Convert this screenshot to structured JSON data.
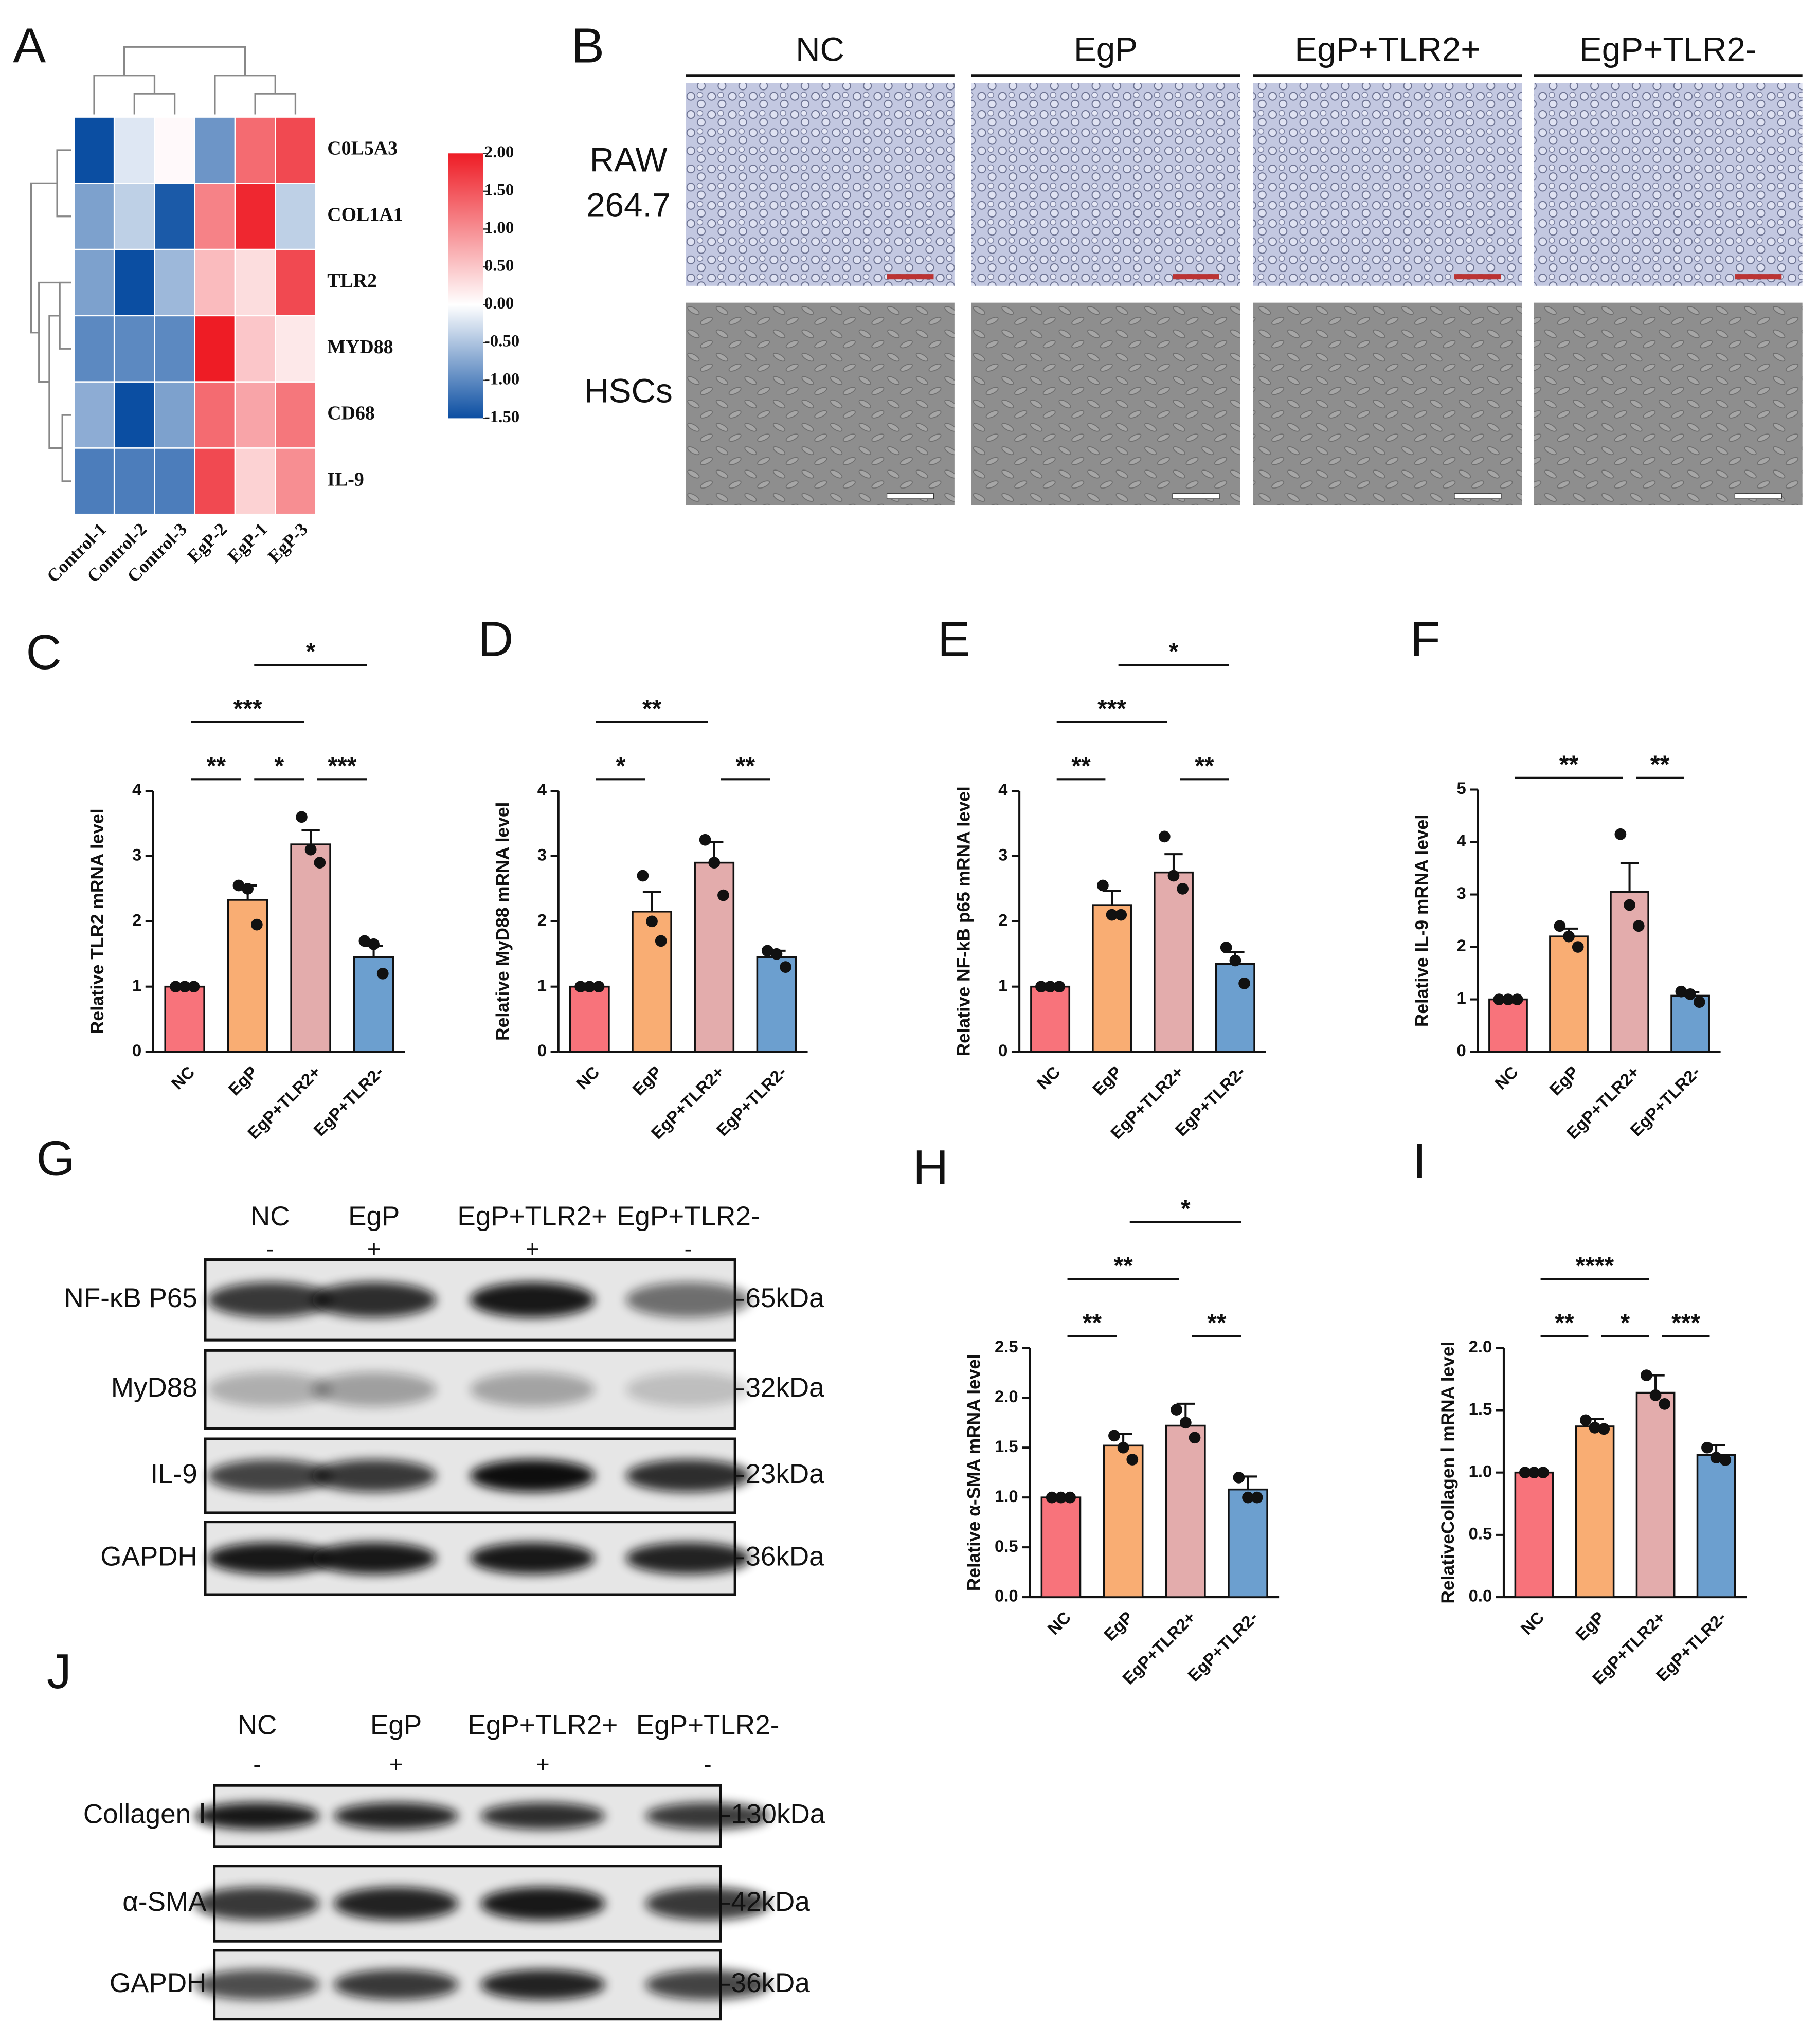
{
  "panel_labels": [
    "A",
    "B",
    "C",
    "D",
    "E",
    "F",
    "G",
    "H",
    "I",
    "J"
  ],
  "chart_data": [
    {
      "type": "heatmap",
      "rows": [
        "C0L5A3",
        "COL1A1",
        "TLR2",
        "MYD88",
        "CD68",
        "IL-9"
      ],
      "columns": [
        "Control-1",
        "Control-2",
        "Control-3",
        "EgP-2",
        "EgP-1",
        "EgP-3"
      ],
      "values": [
        [
          -1.5,
          -0.2,
          0.05,
          -0.9,
          1.3,
          1.6
        ],
        [
          -0.8,
          -0.4,
          -1.4,
          1.1,
          1.9,
          -0.4
        ],
        [
          -0.8,
          -1.5,
          -0.6,
          0.6,
          0.3,
          1.6
        ],
        [
          -1.0,
          -1.0,
          -1.0,
          2.0,
          0.5,
          0.2
        ],
        [
          -0.7,
          -1.5,
          -0.8,
          1.3,
          0.8,
          1.2
        ],
        [
          -1.1,
          -1.1,
          -1.1,
          1.6,
          0.4,
          1.0
        ]
      ],
      "clim": [
        -1.5,
        2
      ],
      "colors": [
        "#0b4ea2",
        "#ffffff",
        "#ee1c25"
      ],
      "colorbar_ticks": [
        {
          "value": 2,
          "label": "2.00"
        },
        {
          "value": 1.5,
          "label": "1.50"
        },
        {
          "value": 1,
          "label": "1.00"
        },
        {
          "value": 0.5,
          "label": "0.50"
        },
        {
          "value": 0,
          "label": "0.00"
        },
        {
          "value": -0.5,
          "label": "-0.50"
        },
        {
          "value": -1,
          "label": "-1.00"
        },
        {
          "value": -1.5,
          "label": "-1.50"
        }
      ]
    },
    {
      "type": "bar",
      "ylabel": "Relative TLR2 mRNA level",
      "categories": [
        "NC",
        "EgP",
        "EgP+TLR2+",
        "EgP+TLR2-"
      ],
      "colors": [
        "#f8737b",
        "#f9ad73",
        "#e3acac",
        "#6c9fcf"
      ],
      "values": [
        1,
        2.33,
        3.18,
        1.45
      ],
      "errors": [
        0,
        0.22,
        0.22,
        0.17
      ],
      "points": [
        [
          1,
          1,
          1
        ],
        [
          2.55,
          2.5,
          1.95
        ],
        [
          3.6,
          3.1,
          2.9
        ],
        [
          1.7,
          1.65,
          1.2
        ]
      ],
      "ylim": [
        0,
        4
      ],
      "yticks": [
        0,
        1,
        2,
        3,
        4
      ],
      "significance": [
        {
          "pair": [
            "NC",
            "EgP"
          ],
          "label": "**"
        },
        {
          "pair": [
            "EgP",
            "EgP+TLR2+"
          ],
          "label": "*"
        },
        {
          "pair": [
            "EgP+TLR2+",
            "EgP+TLR2-"
          ],
          "label": "***"
        },
        {
          "pair": [
            "NC",
            "EgP+TLR2+"
          ],
          "label": "***"
        },
        {
          "pair": [
            "EgP",
            "EgP+TLR2-"
          ],
          "label": "*"
        }
      ]
    },
    {
      "type": "bar",
      "ylabel": "Relative MyD88 mRNA level",
      "categories": [
        "NC",
        "EgP",
        "EgP+TLR2+",
        "EgP+TLR2-"
      ],
      "colors": [
        "#f8737b",
        "#f9ad73",
        "#e3acac",
        "#6c9fcf"
      ],
      "values": [
        1,
        2.15,
        2.9,
        1.45
      ],
      "errors": [
        0,
        0.3,
        0.32,
        0.1
      ],
      "points": [
        [
          1,
          1,
          1
        ],
        [
          2.7,
          2.0,
          1.7
        ],
        [
          3.25,
          2.9,
          2.4
        ],
        [
          1.55,
          1.5,
          1.3
        ]
      ],
      "ylim": [
        0,
        4
      ],
      "yticks": [
        0,
        1,
        2,
        3,
        4
      ],
      "significance": [
        {
          "pair": [
            "NC",
            "EgP"
          ],
          "label": "*"
        },
        {
          "pair": [
            "EgP+TLR2+",
            "EgP+TLR2-"
          ],
          "label": "**"
        },
        {
          "pair": [
            "NC",
            "EgP+TLR2+"
          ],
          "label": "**"
        }
      ]
    },
    {
      "type": "bar",
      "ylabel": "Relative NF-kB p65 mRNA level",
      "categories": [
        "NC",
        "EgP",
        "EgP+TLR2+",
        "EgP+TLR2-"
      ],
      "colors": [
        "#f8737b",
        "#f9ad73",
        "#e3acac",
        "#6c9fcf"
      ],
      "values": [
        1,
        2.25,
        2.75,
        1.35
      ],
      "errors": [
        0,
        0.22,
        0.28,
        0.18
      ],
      "points": [
        [
          1,
          1,
          1
        ],
        [
          2.55,
          2.1,
          2.1
        ],
        [
          3.3,
          2.7,
          2.5
        ],
        [
          1.6,
          1.4,
          1.05
        ]
      ],
      "ylim": [
        0,
        4
      ],
      "yticks": [
        0,
        1,
        2,
        3,
        4
      ],
      "significance": [
        {
          "pair": [
            "NC",
            "EgP"
          ],
          "label": "**"
        },
        {
          "pair": [
            "EgP+TLR2+",
            "EgP+TLR2-"
          ],
          "label": "**"
        },
        {
          "pair": [
            "NC",
            "EgP+TLR2+"
          ],
          "label": "***"
        },
        {
          "pair": [
            "EgP",
            "EgP+TLR2-"
          ],
          "label": "*"
        }
      ]
    },
    {
      "type": "bar",
      "ylabel": "Relative IL-9 mRNA level",
      "categories": [
        "NC",
        "EgP",
        "EgP+TLR2+",
        "EgP+TLR2-"
      ],
      "colors": [
        "#f8737b",
        "#f9ad73",
        "#e3acac",
        "#6c9fcf"
      ],
      "values": [
        1,
        2.2,
        3.05,
        1.07
      ],
      "errors": [
        0,
        0.15,
        0.55,
        0.07
      ],
      "points": [
        [
          1,
          1,
          1
        ],
        [
          2.4,
          2.2,
          2.0
        ],
        [
          4.15,
          2.8,
          2.4
        ],
        [
          1.15,
          1.1,
          0.95
        ]
      ],
      "ylim": [
        0,
        5
      ],
      "yticks": [
        0,
        1,
        2,
        3,
        4,
        5
      ],
      "significance": [
        {
          "pair": [
            "NC",
            "EgP+TLR2+"
          ],
          "label": "**"
        },
        {
          "pair": [
            "EgP+TLR2+",
            "EgP+TLR2-"
          ],
          "label": "**"
        }
      ]
    },
    {
      "type": "bar",
      "ylabel": "Relative α-SMA mRNA level",
      "categories": [
        "NC",
        "EgP",
        "EgP+TLR2+",
        "EgP+TLR2-"
      ],
      "colors": [
        "#f8737b",
        "#f9ad73",
        "#e3acac",
        "#6c9fcf"
      ],
      "values": [
        1.0,
        1.52,
        1.72,
        1.08
      ],
      "errors": [
        0,
        0.12,
        0.22,
        0.13
      ],
      "points": [
        [
          1,
          1,
          1
        ],
        [
          1.62,
          1.5,
          1.38
        ],
        [
          1.88,
          1.75,
          1.6
        ],
        [
          1.2,
          1.0,
          1.0
        ]
      ],
      "ylim": [
        0,
        2.5
      ],
      "yticks": [
        {
          "value": 0,
          "label": "0.0"
        },
        0.5,
        {
          "value": 1,
          "label": "1.0"
        },
        1.5,
        {
          "value": 2,
          "label": "2.0"
        },
        2.5
      ],
      "significance": [
        {
          "pair": [
            "NC",
            "EgP"
          ],
          "label": "**"
        },
        {
          "pair": [
            "EgP+TLR2+",
            "EgP+TLR2-"
          ],
          "label": "**"
        },
        {
          "pair": [
            "NC",
            "EgP+TLR2+"
          ],
          "label": "**"
        },
        {
          "pair": [
            "EgP",
            "EgP+TLR2-"
          ],
          "label": "*"
        }
      ]
    },
    {
      "type": "bar",
      "ylabel": "RelativeCollagen Ⅰ mRNA level",
      "categories": [
        "NC",
        "EgP",
        "EgP+TLR2+",
        "EgP+TLR2-"
      ],
      "colors": [
        "#f8737b",
        "#f9ad73",
        "#e3acac",
        "#6c9fcf"
      ],
      "values": [
        1.0,
        1.37,
        1.64,
        1.14
      ],
      "errors": [
        0,
        0.06,
        0.14,
        0.08
      ],
      "points": [
        [
          1,
          1,
          1
        ],
        [
          1.42,
          1.36,
          1.35
        ],
        [
          1.78,
          1.62,
          1.55
        ],
        [
          1.2,
          1.12,
          1.1
        ]
      ],
      "ylim": [
        0,
        2
      ],
      "yticks": [
        {
          "value": 0,
          "label": "0.0"
        },
        0.5,
        {
          "value": 1,
          "label": "1.0"
        },
        1.5,
        {
          "value": 2,
          "label": "2.0"
        }
      ],
      "significance": [
        {
          "pair": [
            "NC",
            "EgP"
          ],
          "label": "**"
        },
        {
          "pair": [
            "EgP",
            "EgP+TLR2+"
          ],
          "label": "*"
        },
        {
          "pair": [
            "EgP+TLR2+",
            "EgP+TLR2-"
          ],
          "label": "***"
        },
        {
          "pair": [
            "NC",
            "EgP+TLR2+"
          ],
          "label": "****"
        }
      ]
    }
  ],
  "images": {
    "columns": [
      "NC",
      "EgP",
      "EgP+TLR2+",
      "EgP+TLR2-"
    ],
    "row_labels": [
      [
        "RAW",
        "264.7"
      ],
      [
        "HSCs"
      ]
    ]
  },
  "blots": [
    {
      "lanes": [
        "NC",
        "EgP",
        "EgP+TLR2+",
        "EgP+TLR2-"
      ],
      "treatment": [
        "-",
        "+",
        "+",
        "-"
      ],
      "rows": [
        {
          "protein": "NF-κB P65",
          "size": "65kDa"
        },
        {
          "protein": "MyD88",
          "size": "32kDa"
        },
        {
          "protein": "IL-9",
          "size": "23kDa"
        },
        {
          "protein": "GAPDH",
          "size": "36kDa"
        }
      ]
    },
    {
      "lanes": [
        "NC",
        "EgP",
        "EgP+TLR2+",
        "EgP+TLR2-"
      ],
      "treatment": [
        "-",
        "+",
        "+",
        "-"
      ],
      "rows": [
        {
          "protein": "Collagen Ⅰ",
          "size": "130kDa"
        },
        {
          "protein": "α-SMA",
          "size": "42kDa"
        },
        {
          "protein": "GAPDH",
          "size": "36kDa"
        }
      ]
    }
  ]
}
